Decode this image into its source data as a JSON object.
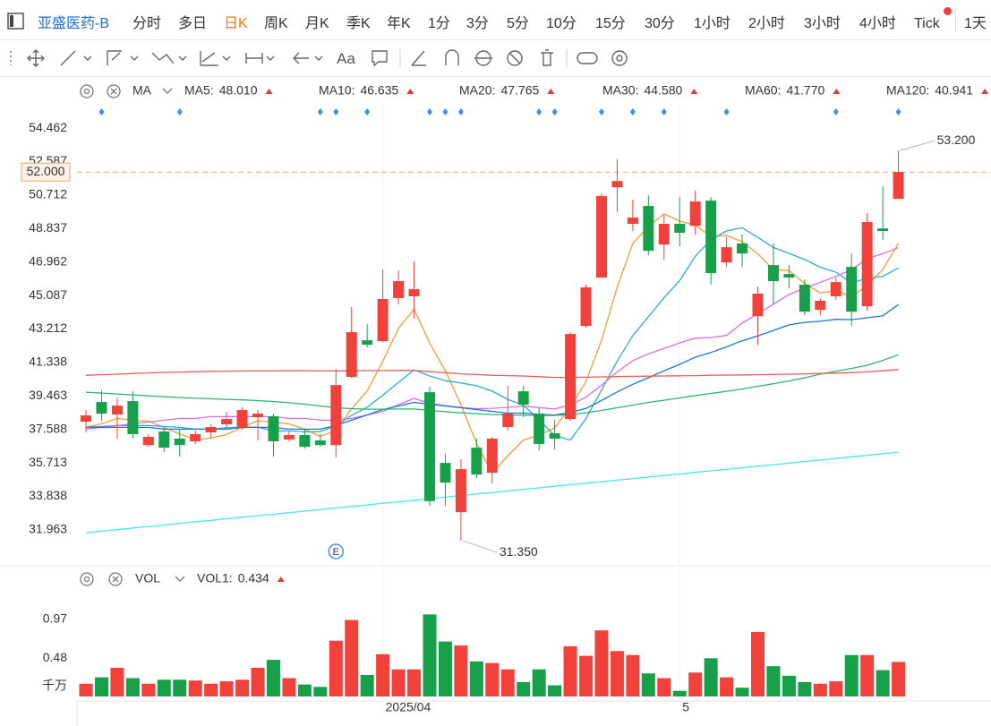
{
  "toolbar": {
    "symbol": "亚盛医药-B",
    "periods": [
      "分时",
      "多日",
      "日K",
      "周K",
      "月K",
      "季K",
      "年K",
      "1分",
      "3分",
      "5分",
      "10分",
      "15分",
      "30分",
      "1小时",
      "2小时",
      "3小时",
      "4小时",
      "Tick",
      "1天"
    ],
    "active": "日K",
    "text_tool": "Aa"
  },
  "chart_data": {
    "type": "candlestick",
    "indicator": "MA",
    "event_label": "E",
    "categories": [
      null,
      null,
      null,
      null,
      null,
      null,
      null,
      null,
      null,
      null,
      null,
      null,
      null,
      null,
      null,
      null,
      null,
      null,
      null,
      "2025/04",
      null,
      null,
      null,
      null,
      null,
      null,
      null,
      null,
      null,
      null,
      null,
      null,
      null,
      null,
      null,
      null,
      null,
      null,
      "5",
      null,
      null,
      null,
      null,
      null,
      null,
      null,
      null,
      null,
      null,
      null,
      null,
      null,
      null
    ],
    "open": [
      38.02,
      39.12,
      38.42,
      39.17,
      36.71,
      37.47,
      37.07,
      36.92,
      37.42,
      37.87,
      37.72,
      38.27,
      38.32,
      37.02,
      37.27,
      36.97,
      36.71,
      40.53,
      42.58,
      42.53,
      44.94,
      45.04,
      39.67,
      35.71,
      32.95,
      36.56,
      35.16,
      37.72,
      39.72,
      38.47,
      37.37,
      38.17,
      43.38,
      46.09,
      51.15,
      49.1,
      50.1,
      47.94,
      49.1,
      48.99,
      50.4,
      46.94,
      48.0,
      43.93,
      46.79,
      46.29,
      45.69,
      44.28,
      45.04,
      46.69,
      44.48,
      48.84,
      50.5
    ],
    "high": [
      38.67,
      39.77,
      39.32,
      39.72,
      37.32,
      37.67,
      37.57,
      37.52,
      37.87,
      38.57,
      38.82,
      38.67,
      38.47,
      37.47,
      37.57,
      37.32,
      40.98,
      44.44,
      43.48,
      46.54,
      46.49,
      46.99,
      39.97,
      36.21,
      35.91,
      37.07,
      37.17,
      40.02,
      40.02,
      38.77,
      38.12,
      43.03,
      45.69,
      50.8,
      52.71,
      50.45,
      50.7,
      49.6,
      50.6,
      50.95,
      50.6,
      48.35,
      48.5,
      45.59,
      48.0,
      46.79,
      45.99,
      44.94,
      46.09,
      47.44,
      49.7,
      51.2,
      53.2
    ],
    "low": [
      37.42,
      38.07,
      37.07,
      37.07,
      36.61,
      36.31,
      36.06,
      36.77,
      37.07,
      37.67,
      37.57,
      36.97,
      36.06,
      36.92,
      36.51,
      36.61,
      36.01,
      40.47,
      42.18,
      42.48,
      44.59,
      43.78,
      33.31,
      33.31,
      31.35,
      34.86,
      34.56,
      37.52,
      38.27,
      36.41,
      36.46,
      38.07,
      43.28,
      46.09,
      49.75,
      48.7,
      47.34,
      47.09,
      47.84,
      48.5,
      45.69,
      46.69,
      46.69,
      42.33,
      44.59,
      45.49,
      43.98,
      43.98,
      44.84,
      43.38,
      44.23,
      48.2,
      50.5
    ],
    "close": [
      38.37,
      38.47,
      38.92,
      37.32,
      37.17,
      36.56,
      36.71,
      37.32,
      37.72,
      38.17,
      38.67,
      38.47,
      36.92,
      37.27,
      36.61,
      36.71,
      40.07,
      43.03,
      42.33,
      44.89,
      45.89,
      45.44,
      33.57,
      34.61,
      35.36,
      35.06,
      37.07,
      38.47,
      38.97,
      36.77,
      37.07,
      42.93,
      45.54,
      50.65,
      51.5,
      49.45,
      47.59,
      49.1,
      48.6,
      50.35,
      46.34,
      47.79,
      47.44,
      45.19,
      45.89,
      46.09,
      44.18,
      44.79,
      45.84,
      44.18,
      49.2,
      48.7,
      52.0
    ],
    "up_color": "#f0413b",
    "down_color": "#17a04a",
    "ylim": [
      30.05,
      55.72
    ],
    "yticks": [
      54.462,
      52.587,
      50.712,
      48.837,
      46.962,
      45.087,
      43.212,
      41.338,
      39.463,
      37.588,
      35.713,
      33.838,
      31.963
    ],
    "current_price": {
      "value": 52.0,
      "label": "52.000",
      "color": "#f4a66a"
    },
    "annotations": [
      {
        "value": 53.2,
        "label": "53.200"
      },
      {
        "value": 31.35,
        "label": "31.350"
      }
    ],
    "series": [
      {
        "name": "MA5:",
        "color": "#f39c34",
        "last_label": "48.010",
        "values": [
          37.7,
          37.9,
          38.2,
          38.1,
          38.05,
          37.69,
          37.34,
          37.02,
          37.1,
          37.3,
          37.72,
          38.07,
          37.99,
          37.9,
          37.59,
          37.2,
          37.52,
          38.74,
          39.75,
          41.41,
          43.24,
          44.32,
          42.42,
          40.88,
          38.97,
          36.81,
          35.13,
          36.11,
          36.99,
          37.27,
          37.67,
          38.84,
          40.26,
          42.59,
          45.54,
          48.01,
          48.95,
          49.66,
          49.25,
          49.02,
          48.4,
          48.44,
          48.1,
          47.42,
          46.53,
          46.48,
          45.76,
          45.23,
          45.36,
          45.02,
          45.64,
          46.54,
          48.01
        ]
      },
      {
        "name": "MA10:",
        "color": "#2fa9d6",
        "last_label": "46.635",
        "values": [
          37.7,
          37.75,
          37.8,
          37.8,
          37.8,
          37.75,
          37.7,
          37.6,
          37.6,
          37.68,
          37.71,
          37.71,
          37.51,
          37.5,
          37.45,
          37.46,
          37.8,
          38.37,
          38.83,
          39.5,
          40.22,
          40.92,
          40.58,
          40.32,
          40.19,
          40.03,
          39.73,
          39.27,
          38.94,
          38.12,
          37.24,
          36.99,
          38.19,
          39.79,
          41.41,
          42.84,
          43.9,
          44.96,
          45.92,
          47.28,
          48.21,
          48.7,
          48.88,
          48.34,
          47.78,
          47.44,
          47.1,
          46.67,
          46.39,
          45.78,
          46.06,
          46.15,
          46.635
        ]
      },
      {
        "name": "MA20:",
        "color": "#d96ee0",
        "last_label": "47.765",
        "values": [
          37.6,
          37.7,
          37.8,
          37.9,
          38.0,
          38.1,
          38.2,
          38.2,
          38.3,
          38.3,
          38.3,
          38.3,
          38.3,
          38.2,
          38.2,
          38.1,
          38.1,
          38.2,
          38.4,
          38.59,
          38.97,
          39.32,
          39.05,
          38.91,
          38.82,
          38.75,
          38.77,
          38.82,
          38.89,
          38.81,
          38.73,
          38.96,
          39.39,
          40.06,
          40.8,
          41.44,
          41.82,
          42.12,
          42.43,
          42.7,
          42.73,
          42.85,
          43.54,
          44.07,
          44.6,
          45.14,
          45.5,
          45.82,
          46.16,
          46.53,
          47.14,
          47.43,
          47.765
        ]
      },
      {
        "name": "MA30:",
        "color": "#1976d2",
        "last_label": "44.580",
        "values": [
          37.7,
          37.7,
          37.7,
          37.7,
          37.7,
          37.6,
          37.6,
          37.6,
          37.6,
          37.6,
          37.7,
          37.7,
          37.7,
          37.6,
          37.6,
          37.6,
          37.8,
          38.1,
          38.4,
          38.7,
          38.9,
          39.1,
          39.0,
          38.9,
          38.8,
          38.7,
          38.6,
          38.5,
          38.5,
          38.43,
          38.39,
          38.54,
          38.76,
          39.21,
          39.68,
          40.11,
          40.48,
          40.87,
          41.23,
          41.63,
          41.89,
          42.21,
          42.55,
          42.82,
          43.13,
          43.44,
          43.58,
          43.64,
          43.75,
          43.73,
          43.84,
          43.95,
          44.58
        ]
      },
      {
        "name": "MA60:",
        "color": "#2db36f",
        "last_label": "41.770",
        "values": [
          39.67,
          39.62,
          39.57,
          39.52,
          39.47,
          39.42,
          39.37,
          39.33,
          39.3,
          39.27,
          39.24,
          39.2,
          39.15,
          39.08,
          39.0,
          38.9,
          38.8,
          38.75,
          38.72,
          38.72,
          38.73,
          38.73,
          38.65,
          38.58,
          38.52,
          38.47,
          38.42,
          38.4,
          38.38,
          38.37,
          38.37,
          38.42,
          38.52,
          38.65,
          38.8,
          38.95,
          39.1,
          39.22,
          39.35,
          39.48,
          39.6,
          39.72,
          39.85,
          40.0,
          40.15,
          40.3,
          40.48,
          40.68,
          40.85,
          41.0,
          41.18,
          41.45,
          41.77
        ]
      },
      {
        "name": "MA120:",
        "color": "#ea5b5b",
        "last_label": "40.941",
        "values": [
          40.62,
          40.65,
          40.68,
          40.72,
          40.75,
          40.78,
          40.8,
          40.82,
          40.84,
          40.85,
          40.86,
          40.86,
          40.86,
          40.87,
          40.87,
          40.86,
          40.86,
          40.87,
          40.88,
          40.88,
          40.89,
          40.89,
          40.82,
          40.76,
          40.7,
          40.66,
          40.62,
          40.6,
          40.58,
          40.54,
          40.5,
          40.5,
          40.51,
          40.53,
          40.55,
          40.56,
          40.57,
          40.58,
          40.59,
          40.6,
          40.62,
          40.63,
          40.64,
          40.65,
          40.66,
          40.68,
          40.7,
          40.72,
          40.74,
          40.77,
          40.81,
          40.87,
          40.941
        ]
      },
      {
        "color": "#45e6f0",
        "values": [
          31.8,
          31.89,
          31.97,
          32.06,
          32.15,
          32.23,
          32.32,
          32.41,
          32.49,
          32.58,
          32.67,
          32.75,
          32.84,
          32.93,
          33.01,
          33.1,
          33.19,
          33.27,
          33.36,
          33.45,
          33.53,
          33.62,
          33.71,
          33.79,
          33.88,
          33.97,
          34.05,
          34.14,
          34.23,
          34.31,
          34.4,
          34.49,
          34.57,
          34.66,
          34.75,
          34.83,
          34.92,
          35.01,
          35.09,
          35.18,
          35.27,
          35.35,
          35.44,
          35.53,
          35.61,
          35.7,
          35.79,
          35.87,
          35.96,
          36.05,
          36.13,
          36.22,
          36.31
        ]
      }
    ],
    "volume": {
      "indicator": "VOL",
      "name": "VOL1:",
      "color": "#e8696b",
      "last_label": "0.434",
      "unit": "千万",
      "ylim": [
        0,
        1.27
      ],
      "yticks": [
        0.97,
        0.48
      ],
      "values": [
        0.16,
        0.24,
        0.36,
        0.23,
        0.16,
        0.21,
        0.21,
        0.2,
        0.16,
        0.19,
        0.21,
        0.36,
        0.46,
        0.23,
        0.15,
        0.12,
        0.7,
        0.96,
        0.27,
        0.53,
        0.34,
        0.34,
        1.03,
        0.69,
        0.64,
        0.44,
        0.42,
        0.34,
        0.18,
        0.34,
        0.14,
        0.63,
        0.51,
        0.83,
        0.57,
        0.52,
        0.29,
        0.23,
        0.07,
        0.3,
        0.48,
        0.24,
        0.11,
        0.81,
        0.38,
        0.26,
        0.18,
        0.16,
        0.19,
        0.52,
        0.52,
        0.33,
        0.434
      ]
    }
  }
}
